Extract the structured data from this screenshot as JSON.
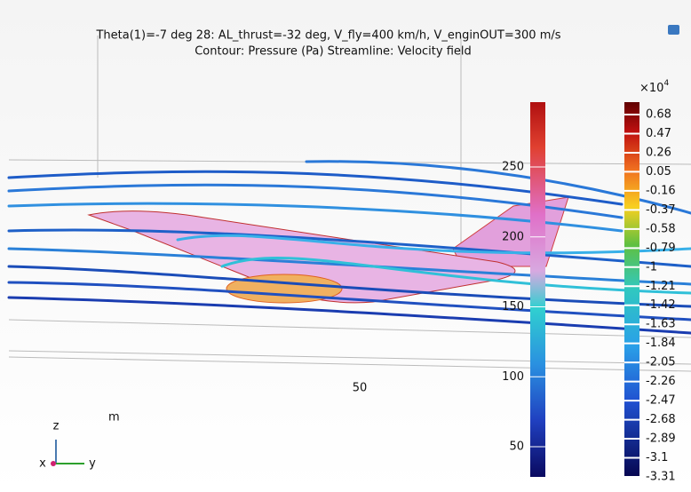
{
  "title_lines": [
    "Theta(1)=-7 deg 28: AL_thrust=-32 deg, V_fly=400 km/h, V_enginOUT=300 m/s",
    "Contour: Pressure (Pa)  Streamline: Velocity field"
  ],
  "scene_axis": {
    "tick": "50",
    "unit": "m"
  },
  "triad": {
    "z": "z",
    "x": "x",
    "y": "y"
  },
  "velocity_colorbar": {
    "ticks": [
      250,
      200,
      150,
      100,
      50
    ]
  },
  "pressure_colorbar": {
    "multiplier": "×10",
    "exponent": "4",
    "ticks": [
      0.68,
      0.47,
      0.26,
      0.05,
      -0.16,
      -0.37,
      -0.58,
      -0.79,
      -1,
      -1.21,
      -1.42,
      -1.63,
      -1.84,
      -2.05,
      -2.26,
      -2.47,
      -2.68,
      -2.89,
      -3.1,
      -3.31
    ]
  }
}
